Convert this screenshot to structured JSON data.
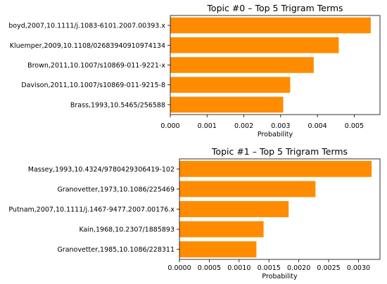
{
  "chart_data": [
    {
      "type": "bar",
      "orientation": "horizontal",
      "title": "Topic #0 – Top 5 Trigram Terms",
      "xlabel": "Probability",
      "ylabel": "",
      "categories": [
        "boyd,2007,10.1111/j.1083-6101.2007.00393.x",
        "Kluemper,2009,10.1108/02683940910974134",
        "Brown,2011,10.1007/s10869-011-9221-x",
        "Davison,2011,10.1007/s10869-011-9215-8",
        "Brass,1993,10.5465/256588"
      ],
      "values": [
        0.00545,
        0.00458,
        0.0039,
        0.00326,
        0.00307
      ],
      "xlim": [
        0,
        0.0057
      ],
      "xticks": [
        0.0,
        0.001,
        0.002,
        0.003,
        0.004,
        0.005
      ],
      "xtick_labels": [
        "0.000",
        "0.001",
        "0.002",
        "0.003",
        "0.004",
        "0.005"
      ],
      "color": "#ff8c00",
      "grid": false
    },
    {
      "type": "bar",
      "orientation": "horizontal",
      "title": "Topic #1 – Top 5 Trigram Terms",
      "xlabel": "Probability",
      "ylabel": "",
      "categories": [
        "Massey,1993,10.4324/9780429306419-102",
        "Granovetter,1973,10.1086/225469",
        "Putnam,2007,10.1111/j.1467-9477.2007.00176.x",
        "Kain,1968,10.2307/1885893",
        "Granovetter,1985,10.1086/228311"
      ],
      "values": [
        0.00322,
        0.00228,
        0.00183,
        0.00141,
        0.00129
      ],
      "xlim": [
        0,
        0.00336
      ],
      "xticks": [
        0.0,
        0.0005,
        0.001,
        0.0015,
        0.002,
        0.0025,
        0.003
      ],
      "xtick_labels": [
        "0.0000",
        "0.0005",
        "0.0010",
        "0.0015",
        "0.0020",
        "0.0025",
        "0.0030"
      ],
      "color": "#ff8c00",
      "grid": false
    }
  ]
}
